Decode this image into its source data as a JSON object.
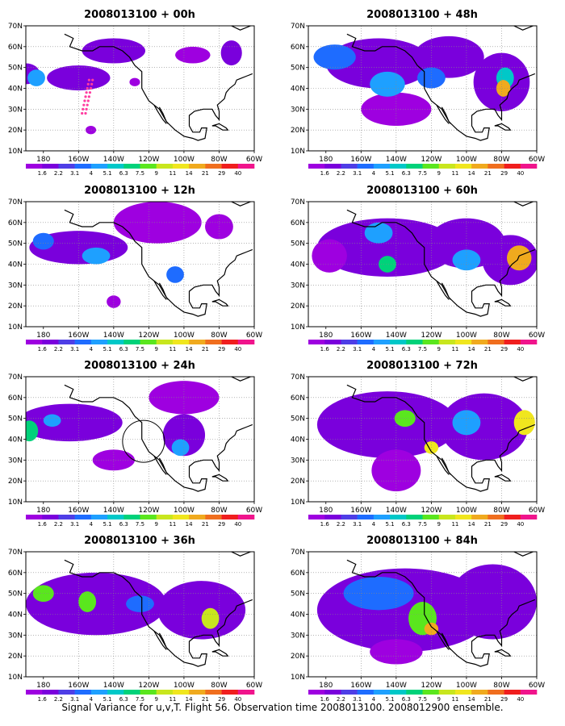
{
  "figure": {
    "caption": "Signal Variance for u,v,T. Flight 56. Observation time 2008013100. 2008012900 ensemble."
  },
  "axes": {
    "lon_ticks": [
      "180",
      "160W",
      "140W",
      "120W",
      "100W",
      "80W",
      "60W"
    ],
    "lat_ticks": [
      "10N",
      "20N",
      "30N",
      "40N",
      "50N",
      "60N",
      "70N"
    ],
    "lon_range": [
      -190,
      -60
    ],
    "lat_range": [
      10,
      70
    ]
  },
  "colorbar": {
    "labels": [
      "1.6",
      "2.2",
      "3.1",
      "4",
      "5.1",
      "6.3",
      "7.5",
      "9",
      "11",
      "14",
      "21",
      "29",
      "40"
    ],
    "colors": [
      "#9e00e0",
      "#7a00dc",
      "#4e3ee6",
      "#1e6cff",
      "#1ea0ff",
      "#00c8c8",
      "#00d27a",
      "#5ae61e",
      "#c8e61e",
      "#f0e61e",
      "#f0aa1e",
      "#f06e1e",
      "#f01e1e",
      "#f0148c"
    ]
  },
  "panels": [
    {
      "title": "2008013100 + 00h",
      "lead_hours": 0
    },
    {
      "title": "2008013100 + 48h",
      "lead_hours": 48
    },
    {
      "title": "2008013100 + 12h",
      "lead_hours": 12
    },
    {
      "title": "2008013100 + 60h",
      "lead_hours": 60
    },
    {
      "title": "2008013100 + 24h",
      "lead_hours": 24
    },
    {
      "title": "2008013100 + 72h",
      "lead_hours": 72
    },
    {
      "title": "2008013100 + 36h",
      "lead_hours": 36
    },
    {
      "title": "2008013100 + 84h",
      "lead_hours": 84
    }
  ],
  "flight_track": {
    "name": "Flight 56",
    "color": "#ff3ca0"
  },
  "target_circle": {
    "lat": 39,
    "lon": -123,
    "color": "#000000"
  },
  "blobs": {
    "p00": [
      {
        "lon": -190,
        "lat": 47,
        "rx": 8,
        "ry": 5,
        "level": 1
      },
      {
        "lon": -184,
        "lat": 45,
        "rx": 5,
        "ry": 4,
        "level": 4
      },
      {
        "lon": -160,
        "lat": 45,
        "rx": 18,
        "ry": 6,
        "level": 1
      },
      {
        "lon": -140,
        "lat": 58,
        "rx": 18,
        "ry": 6,
        "level": 1
      },
      {
        "lon": -95,
        "lat": 56,
        "rx": 10,
        "ry": 4,
        "level": 0
      },
      {
        "lon": -73,
        "lat": 57,
        "rx": 6,
        "ry": 6,
        "level": 1
      },
      {
        "lon": -128,
        "lat": 43,
        "rx": 3,
        "ry": 2,
        "level": 0
      },
      {
        "lon": -153,
        "lat": 20,
        "rx": 3,
        "ry": 2,
        "level": 0
      }
    ],
    "p48": [
      {
        "lon": -150,
        "lat": 52,
        "rx": 30,
        "ry": 12,
        "level": 1
      },
      {
        "lon": -110,
        "lat": 55,
        "rx": 20,
        "ry": 10,
        "level": 1
      },
      {
        "lon": -80,
        "lat": 43,
        "rx": 16,
        "ry": 14,
        "level": 1
      },
      {
        "lon": -140,
        "lat": 30,
        "rx": 20,
        "ry": 8,
        "level": 0
      },
      {
        "lon": -175,
        "lat": 55,
        "rx": 12,
        "ry": 6,
        "level": 3
      },
      {
        "lon": -145,
        "lat": 42,
        "rx": 10,
        "ry": 6,
        "level": 4
      },
      {
        "lon": -78,
        "lat": 45,
        "rx": 5,
        "ry": 5,
        "level": 5
      },
      {
        "lon": -79,
        "lat": 40,
        "rx": 4,
        "ry": 4,
        "level": 10
      },
      {
        "lon": -120,
        "lat": 45,
        "rx": 8,
        "ry": 5,
        "level": 3
      }
    ],
    "p12": [
      {
        "lon": -160,
        "lat": 48,
        "rx": 28,
        "ry": 8,
        "level": 1
      },
      {
        "lon": -150,
        "lat": 44,
        "rx": 8,
        "ry": 4,
        "level": 4
      },
      {
        "lon": -180,
        "lat": 51,
        "rx": 6,
        "ry": 4,
        "level": 3
      },
      {
        "lon": -115,
        "lat": 60,
        "rx": 25,
        "ry": 10,
        "level": 0
      },
      {
        "lon": -105,
        "lat": 35,
        "rx": 5,
        "ry": 4,
        "level": 3
      },
      {
        "lon": -80,
        "lat": 58,
        "rx": 8,
        "ry": 6,
        "level": 0
      },
      {
        "lon": -140,
        "lat": 22,
        "rx": 4,
        "ry": 3,
        "level": 0
      }
    ],
    "p60": [
      {
        "lon": -145,
        "lat": 48,
        "rx": 40,
        "ry": 14,
        "level": 1
      },
      {
        "lon": -100,
        "lat": 50,
        "rx": 22,
        "ry": 12,
        "level": 1
      },
      {
        "lon": -75,
        "lat": 42,
        "rx": 16,
        "ry": 12,
        "level": 1
      },
      {
        "lon": -150,
        "lat": 55,
        "rx": 8,
        "ry": 5,
        "level": 4
      },
      {
        "lon": -145,
        "lat": 40,
        "rx": 5,
        "ry": 4,
        "level": 6
      },
      {
        "lon": -100,
        "lat": 42,
        "rx": 8,
        "ry": 5,
        "level": 4
      },
      {
        "lon": -70,
        "lat": 43,
        "rx": 7,
        "ry": 6,
        "level": 10
      },
      {
        "lon": -178,
        "lat": 44,
        "rx": 10,
        "ry": 8,
        "level": 0
      }
    ],
    "p24": [
      {
        "lon": -165,
        "lat": 48,
        "rx": 30,
        "ry": 9,
        "level": 1
      },
      {
        "lon": -188,
        "lat": 44,
        "rx": 5,
        "ry": 5,
        "level": 6
      },
      {
        "lon": -175,
        "lat": 49,
        "rx": 5,
        "ry": 3,
        "level": 4
      },
      {
        "lon": -100,
        "lat": 42,
        "rx": 12,
        "ry": 10,
        "level": 1
      },
      {
        "lon": -102,
        "lat": 36,
        "rx": 5,
        "ry": 4,
        "level": 4
      },
      {
        "lon": -140,
        "lat": 30,
        "rx": 12,
        "ry": 5,
        "level": 0
      },
      {
        "lon": -100,
        "lat": 60,
        "rx": 20,
        "ry": 8,
        "level": 0
      }
    ],
    "p72": [
      {
        "lon": -145,
        "lat": 47,
        "rx": 40,
        "ry": 16,
        "level": 1
      },
      {
        "lon": -90,
        "lat": 46,
        "rx": 25,
        "ry": 16,
        "level": 1
      },
      {
        "lon": -140,
        "lat": 25,
        "rx": 14,
        "ry": 10,
        "level": 0
      },
      {
        "lon": -135,
        "lat": 50,
        "rx": 6,
        "ry": 4,
        "level": 7
      },
      {
        "lon": -120,
        "lat": 36,
        "rx": 4,
        "ry": 3,
        "level": 9
      },
      {
        "lon": -67,
        "lat": 48,
        "rx": 6,
        "ry": 6,
        "level": 9
      },
      {
        "lon": -100,
        "lat": 48,
        "rx": 8,
        "ry": 6,
        "level": 4
      }
    ],
    "p36": [
      {
        "lon": -150,
        "lat": 45,
        "rx": 40,
        "ry": 15,
        "level": 1
      },
      {
        "lon": -90,
        "lat": 42,
        "rx": 25,
        "ry": 14,
        "level": 1
      },
      {
        "lon": -180,
        "lat": 50,
        "rx": 6,
        "ry": 4,
        "level": 7
      },
      {
        "lon": -155,
        "lat": 46,
        "rx": 5,
        "ry": 5,
        "level": 7
      },
      {
        "lon": -85,
        "lat": 38,
        "rx": 5,
        "ry": 5,
        "level": 8
      },
      {
        "lon": -125,
        "lat": 45,
        "rx": 8,
        "ry": 4,
        "level": 3
      }
    ],
    "p84": [
      {
        "lon": -135,
        "lat": 42,
        "rx": 50,
        "ry": 20,
        "level": 1
      },
      {
        "lon": -85,
        "lat": 46,
        "rx": 25,
        "ry": 18,
        "level": 1
      },
      {
        "lon": -150,
        "lat": 50,
        "rx": 20,
        "ry": 8,
        "level": 3
      },
      {
        "lon": -125,
        "lat": 38,
        "rx": 8,
        "ry": 8,
        "level": 7
      },
      {
        "lon": -120,
        "lat": 33,
        "rx": 4,
        "ry": 3,
        "level": 10
      },
      {
        "lon": -140,
        "lat": 22,
        "rx": 15,
        "ry": 6,
        "level": 0
      }
    ]
  }
}
